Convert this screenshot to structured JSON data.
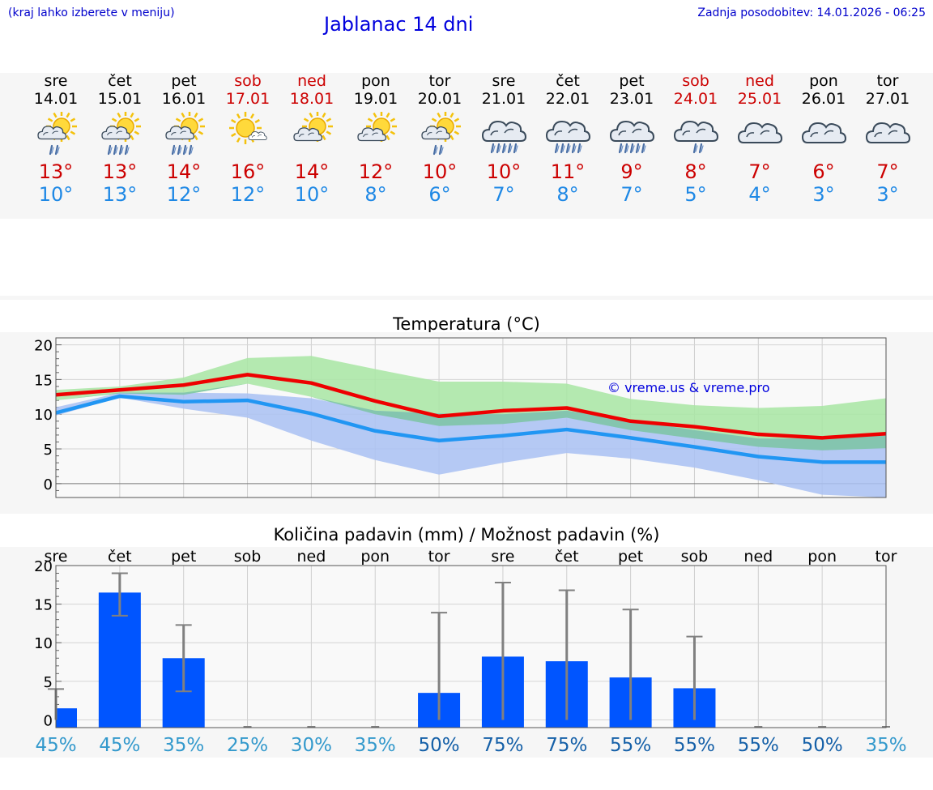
{
  "header": {
    "region_hint": "(kraj lahko izberete v meniju)",
    "title": "Jablanac 14 dni",
    "updated": "Zadnja posodobitev: 14.01.2026 - 06:25"
  },
  "days": [
    {
      "name": "sre",
      "date": "14.01",
      "weekend": false,
      "icon": "sun-cloud-rain-icon",
      "max": "13°",
      "min": "10°"
    },
    {
      "name": "čet",
      "date": "15.01",
      "weekend": false,
      "icon": "sun-cloud-heavy-rain-icon",
      "max": "13°",
      "min": "13°"
    },
    {
      "name": "pet",
      "date": "16.01",
      "weekend": false,
      "icon": "sun-cloud-heavy-rain-icon",
      "max": "14°",
      "min": "12°"
    },
    {
      "name": "sob",
      "date": "17.01",
      "weekend": true,
      "icon": "sun-small-cloud-icon",
      "max": "16°",
      "min": "12°"
    },
    {
      "name": "ned",
      "date": "18.01",
      "weekend": true,
      "icon": "sun-cloud-icon",
      "max": "14°",
      "min": "10°"
    },
    {
      "name": "pon",
      "date": "19.01",
      "weekend": false,
      "icon": "sun-cloud-icon",
      "max": "12°",
      "min": "8°"
    },
    {
      "name": "tor",
      "date": "20.01",
      "weekend": false,
      "icon": "sun-cloud-rain-icon",
      "max": "10°",
      "min": "6°"
    },
    {
      "name": "sre",
      "date": "21.01",
      "weekend": false,
      "icon": "cloud-heavy-rain-icon",
      "max": "10°",
      "min": "7°"
    },
    {
      "name": "čet",
      "date": "22.01",
      "weekend": false,
      "icon": "cloud-heavy-rain-icon",
      "max": "11°",
      "min": "8°"
    },
    {
      "name": "pet",
      "date": "23.01",
      "weekend": false,
      "icon": "cloud-heavy-rain-icon",
      "max": "9°",
      "min": "7°"
    },
    {
      "name": "sob",
      "date": "24.01",
      "weekend": true,
      "icon": "cloud-rain-icon",
      "max": "8°",
      "min": "5°"
    },
    {
      "name": "ned",
      "date": "25.01",
      "weekend": true,
      "icon": "cloud-icon",
      "max": "7°",
      "min": "4°"
    },
    {
      "name": "pon",
      "date": "26.01",
      "weekend": false,
      "icon": "cloud-icon",
      "max": "6°",
      "min": "3°"
    },
    {
      "name": "tor",
      "date": "27.01",
      "weekend": false,
      "icon": "cloud-icon",
      "max": "7°",
      "min": "3°"
    }
  ],
  "colors": {
    "weekend": "#cc0000",
    "max_line": "#ee0000",
    "min_line": "#2196f3",
    "max_band": "#a8e6a3",
    "min_band": "#a9c1f3",
    "bar": "#0055ff",
    "err": "#808080",
    "prob_low": "#3399cc",
    "prob_high": "#1560a8"
  },
  "chart_data": [
    {
      "type": "line",
      "title": "Temperatura (°C)",
      "watermark": "© vreme.us & vreme.pro",
      "x": [
        0,
        1,
        2,
        3,
        4,
        5,
        6,
        7,
        8,
        9,
        10,
        11,
        12,
        13
      ],
      "ylim": [
        -2,
        21
      ],
      "yticks": [
        0,
        5,
        10,
        15,
        20
      ],
      "series": [
        {
          "name": "max",
          "values": [
            12.8,
            13.5,
            14.2,
            15.7,
            14.5,
            11.9,
            9.7,
            10.5,
            10.9,
            9.0,
            8.2,
            7.1,
            6.6,
            7.2
          ]
        },
        {
          "name": "min",
          "values": [
            10.2,
            12.6,
            11.8,
            12.0,
            10.1,
            7.6,
            6.2,
            6.9,
            7.8,
            6.6,
            5.3,
            3.9,
            3.1,
            3.1
          ]
        },
        {
          "name": "max_range_low",
          "values": [
            12.0,
            13.0,
            12.8,
            14.4,
            12.5,
            10.0,
            8.3,
            8.6,
            9.5,
            7.7,
            6.5,
            5.3,
            4.8,
            5.1
          ]
        },
        {
          "name": "max_range_high",
          "values": [
            13.5,
            14.0,
            15.3,
            18.1,
            18.4,
            16.5,
            14.7,
            14.7,
            14.4,
            12.2,
            11.3,
            10.9,
            11.2,
            12.3
          ]
        },
        {
          "name": "min_range_low",
          "values": [
            9.8,
            12.4,
            10.8,
            9.5,
            6.2,
            3.4,
            1.3,
            3.0,
            4.4,
            3.6,
            2.3,
            0.5,
            -1.6,
            -2.0
          ]
        },
        {
          "name": "min_range_high",
          "values": [
            11.0,
            13.1,
            13.1,
            13.0,
            12.3,
            10.5,
            10.1,
            10.0,
            10.5,
            9.1,
            7.7,
            6.5,
            6.5,
            7.1
          ]
        }
      ]
    },
    {
      "type": "bar",
      "title": "Količina padavin (mm) / Možnost padavin (%)",
      "categories": [
        "sre",
        "čet",
        "pet",
        "sob",
        "ned",
        "pon",
        "tor",
        "sre",
        "čet",
        "pet",
        "sob",
        "ned",
        "pon",
        "tor"
      ],
      "ylim": [
        -1,
        20
      ],
      "yticks": [
        0,
        5,
        10,
        15,
        20
      ],
      "values": [
        1.5,
        16.5,
        8.0,
        0,
        0,
        0,
        3.5,
        8.2,
        7.6,
        5.5,
        4.1,
        0,
        0,
        0
      ],
      "err_low": [
        0,
        13.5,
        3.7,
        0,
        0,
        0,
        0,
        0,
        0,
        0,
        0,
        0,
        0,
        0
      ],
      "err_high": [
        4.0,
        19.0,
        12.3,
        0,
        0,
        0,
        13.9,
        17.8,
        16.8,
        14.3,
        10.8,
        0,
        0,
        0
      ],
      "probability": [
        "45%",
        "45%",
        "35%",
        "25%",
        "30%",
        "35%",
        "50%",
        "75%",
        "75%",
        "55%",
        "55%",
        "55%",
        "50%",
        "35%"
      ]
    }
  ]
}
